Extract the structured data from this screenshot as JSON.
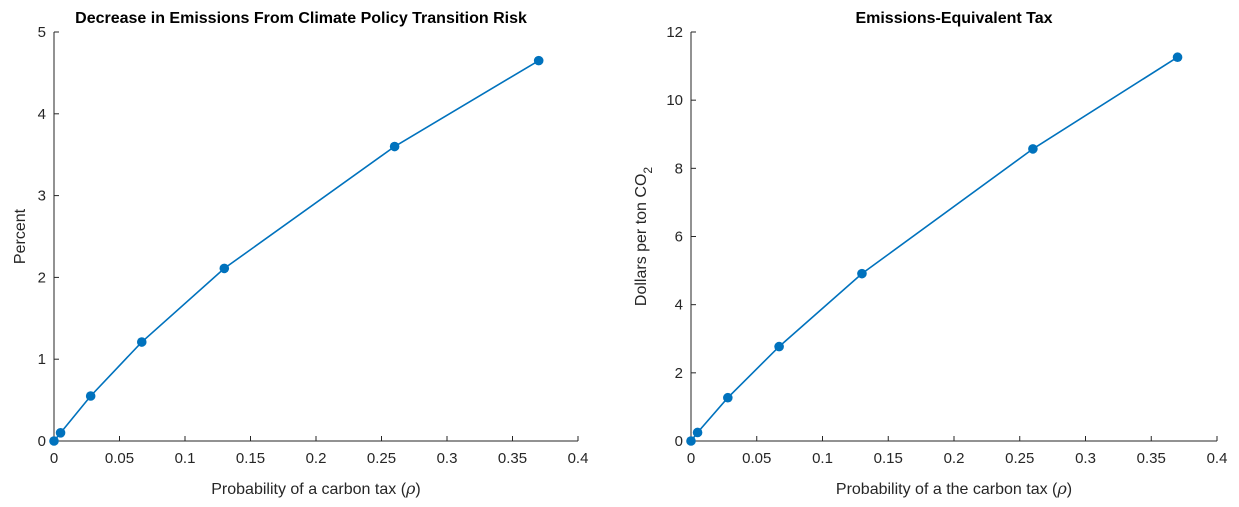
{
  "chart_data": [
    {
      "type": "line",
      "title": "Decrease in Emissions From Climate Policy Transition Risk",
      "xlabel": "Probability of a carbon tax",
      "xlabel_symbol": "(ρ)",
      "ylabel": "Percent",
      "xlim": [
        0,
        0.4
      ],
      "ylim": [
        0,
        5
      ],
      "xticks": [
        "0",
        "0.05",
        "0.1",
        "0.15",
        "0.2",
        "0.25",
        "0.3",
        "0.35",
        "0.4"
      ],
      "yticks": [
        "0",
        "1",
        "2",
        "3",
        "4",
        "5"
      ],
      "color": "#0072BD",
      "markers": "filled circles",
      "grid": false,
      "series": [
        {
          "x": [
            0,
            0.005,
            0.028,
            0.067,
            0.13,
            0.26,
            0.37
          ],
          "y": [
            0,
            0.1,
            0.55,
            1.21,
            2.11,
            3.6,
            4.65
          ]
        }
      ]
    },
    {
      "type": "line",
      "title": "Emissions-Equivalent Tax",
      "xlabel": "Probability of a the carbon tax",
      "xlabel_symbol": "(ρ)",
      "ylabel": "Dollars per ton CO",
      "ylabel_subscript": "2",
      "xlim": [
        0,
        0.4
      ],
      "ylim": [
        0,
        12
      ],
      "xticks": [
        "0",
        "0.05",
        "0.1",
        "0.15",
        "0.2",
        "0.25",
        "0.3",
        "0.35",
        "0.4"
      ],
      "yticks": [
        "0",
        "2",
        "4",
        "6",
        "8",
        "10",
        "12"
      ],
      "color": "#0072BD",
      "markers": "filled circles",
      "grid": false,
      "series": [
        {
          "x": [
            0,
            0.005,
            0.028,
            0.067,
            0.13,
            0.26,
            0.37
          ],
          "y": [
            0,
            0.25,
            1.27,
            2.77,
            4.91,
            8.57,
            11.26
          ]
        }
      ]
    }
  ]
}
